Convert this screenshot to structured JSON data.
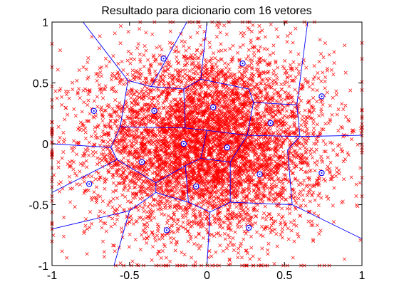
{
  "chart_data": {
    "type": "scatter",
    "title": "Resultado para dicionario com 16 vetores",
    "xlabel": "",
    "ylabel": "",
    "xlim": [
      -1,
      1
    ],
    "ylim": [
      -1,
      1
    ],
    "grid": false,
    "legend": "none",
    "x_ticks": [
      -1,
      -0.5,
      0,
      0.5,
      1
    ],
    "y_ticks": [
      -1,
      -0.5,
      0,
      0.5,
      1
    ],
    "x_tick_labels": [
      "-1",
      "-0.5",
      "0",
      "0.5",
      "1"
    ],
    "y_tick_labels": [
      "-1",
      "-0.5",
      "0",
      "0.5",
      "1"
    ],
    "series": [
      {
        "kind": "samples",
        "marker": "x",
        "color": "#ff0000",
        "distribution": "gaussian",
        "mean": [
          0,
          0
        ],
        "std": 0.38,
        "clip": [
          -1,
          1
        ],
        "count": 6000
      },
      {
        "kind": "codebook",
        "marker": "circled-dot",
        "color": "#0000ff",
        "points": [
          [
            -0.28,
            0.7
          ],
          [
            0.23,
            0.66
          ],
          [
            -0.73,
            0.27
          ],
          [
            -0.34,
            0.27
          ],
          [
            0.04,
            0.3
          ],
          [
            0.74,
            0.39
          ],
          [
            0.41,
            0.17
          ],
          [
            -0.15,
            0.0
          ],
          [
            0.13,
            -0.03
          ],
          [
            -0.42,
            -0.15
          ],
          [
            0.34,
            -0.25
          ],
          [
            0.74,
            -0.24
          ],
          [
            -0.76,
            -0.33
          ],
          [
            -0.07,
            -0.35
          ],
          [
            -0.26,
            -0.71
          ],
          [
            0.27,
            -0.69
          ]
        ]
      },
      {
        "kind": "voronoi-edges",
        "color": "#0000ff",
        "segments": [
          [
            [
              -0.13,
              1.0
            ],
            [
              -0.36,
              0.47
            ]
          ],
          [
            [
              -0.36,
              0.47
            ],
            [
              -0.51,
              0.52
            ]
          ],
          [
            [
              -0.51,
              0.52
            ],
            [
              -0.8,
              1.0
            ]
          ],
          [
            [
              -0.51,
              0.52
            ],
            [
              -0.56,
              0.14
            ]
          ],
          [
            [
              -0.56,
              0.14
            ],
            [
              -0.62,
              -0.03
            ]
          ],
          [
            [
              -0.62,
              -0.03
            ],
            [
              -1.0,
              0.0
            ]
          ],
          [
            [
              -0.36,
              0.47
            ],
            [
              -0.15,
              0.45
            ]
          ],
          [
            [
              -0.15,
              0.45
            ],
            [
              -0.04,
              0.53
            ]
          ],
          [
            [
              -0.04,
              0.53
            ],
            [
              0.0,
              1.0
            ]
          ],
          [
            [
              -0.04,
              0.53
            ],
            [
              0.27,
              0.45
            ]
          ],
          [
            [
              0.27,
              0.45
            ],
            [
              0.3,
              0.34
            ]
          ],
          [
            [
              0.3,
              0.34
            ],
            [
              0.58,
              0.32
            ]
          ],
          [
            [
              0.58,
              0.32
            ],
            [
              0.65,
              1.0
            ]
          ],
          [
            [
              0.58,
              0.32
            ],
            [
              0.6,
              0.06
            ]
          ],
          [
            [
              0.6,
              0.06
            ],
            [
              1.0,
              0.07
            ]
          ],
          [
            [
              0.3,
              0.34
            ],
            [
              0.26,
              0.07
            ]
          ],
          [
            [
              0.26,
              0.07
            ],
            [
              0.6,
              0.06
            ]
          ],
          [
            [
              -0.15,
              0.45
            ],
            [
              -0.14,
              0.13
            ]
          ],
          [
            [
              -0.56,
              0.14
            ],
            [
              -0.14,
              0.13
            ]
          ],
          [
            [
              -0.14,
              0.13
            ],
            [
              0.0,
              0.11
            ]
          ],
          [
            [
              0.0,
              0.11
            ],
            [
              0.26,
              0.07
            ]
          ],
          [
            [
              -0.62,
              -0.03
            ],
            [
              -0.58,
              -0.13
            ]
          ],
          [
            [
              -0.58,
              -0.13
            ],
            [
              -0.33,
              -0.32
            ]
          ],
          [
            [
              -0.33,
              -0.32
            ],
            [
              -0.33,
              -0.4
            ]
          ],
          [
            [
              -0.33,
              -0.4
            ],
            [
              -0.5,
              -0.55
            ]
          ],
          [
            [
              -0.5,
              -0.55
            ],
            [
              -1.0,
              -0.7
            ]
          ],
          [
            [
              -0.5,
              -0.55
            ],
            [
              -0.6,
              -1.0
            ]
          ],
          [
            [
              -0.58,
              -0.13
            ],
            [
              -1.0,
              -0.4
            ]
          ],
          [
            [
              0.0,
              0.11
            ],
            [
              -0.04,
              -0.12
            ]
          ],
          [
            [
              -0.04,
              -0.12
            ],
            [
              -0.14,
              -0.18
            ]
          ],
          [
            [
              -0.14,
              -0.18
            ],
            [
              -0.33,
              -0.32
            ]
          ],
          [
            [
              -0.14,
              -0.18
            ],
            [
              -0.12,
              -0.48
            ]
          ],
          [
            [
              -0.12,
              -0.48
            ],
            [
              0.02,
              -0.56
            ]
          ],
          [
            [
              0.02,
              -0.56
            ],
            [
              0.0,
              -1.0
            ]
          ],
          [
            [
              0.02,
              -0.56
            ],
            [
              0.15,
              -0.48
            ]
          ],
          [
            [
              -0.04,
              -0.12
            ],
            [
              0.15,
              -0.15
            ]
          ],
          [
            [
              0.15,
              -0.15
            ],
            [
              0.26,
              0.07
            ]
          ],
          [
            [
              0.15,
              -0.15
            ],
            [
              0.15,
              -0.48
            ]
          ],
          [
            [
              0.15,
              -0.48
            ],
            [
              0.55,
              -0.5
            ]
          ],
          [
            [
              0.55,
              -0.5
            ],
            [
              1.0,
              -0.78
            ]
          ],
          [
            [
              0.55,
              -0.5
            ],
            [
              0.52,
              -0.05
            ]
          ],
          [
            [
              0.52,
              -0.05
            ],
            [
              0.6,
              0.06
            ]
          ],
          [
            [
              -0.33,
              -0.4
            ],
            [
              -0.12,
              -0.48
            ]
          ]
        ]
      }
    ]
  }
}
